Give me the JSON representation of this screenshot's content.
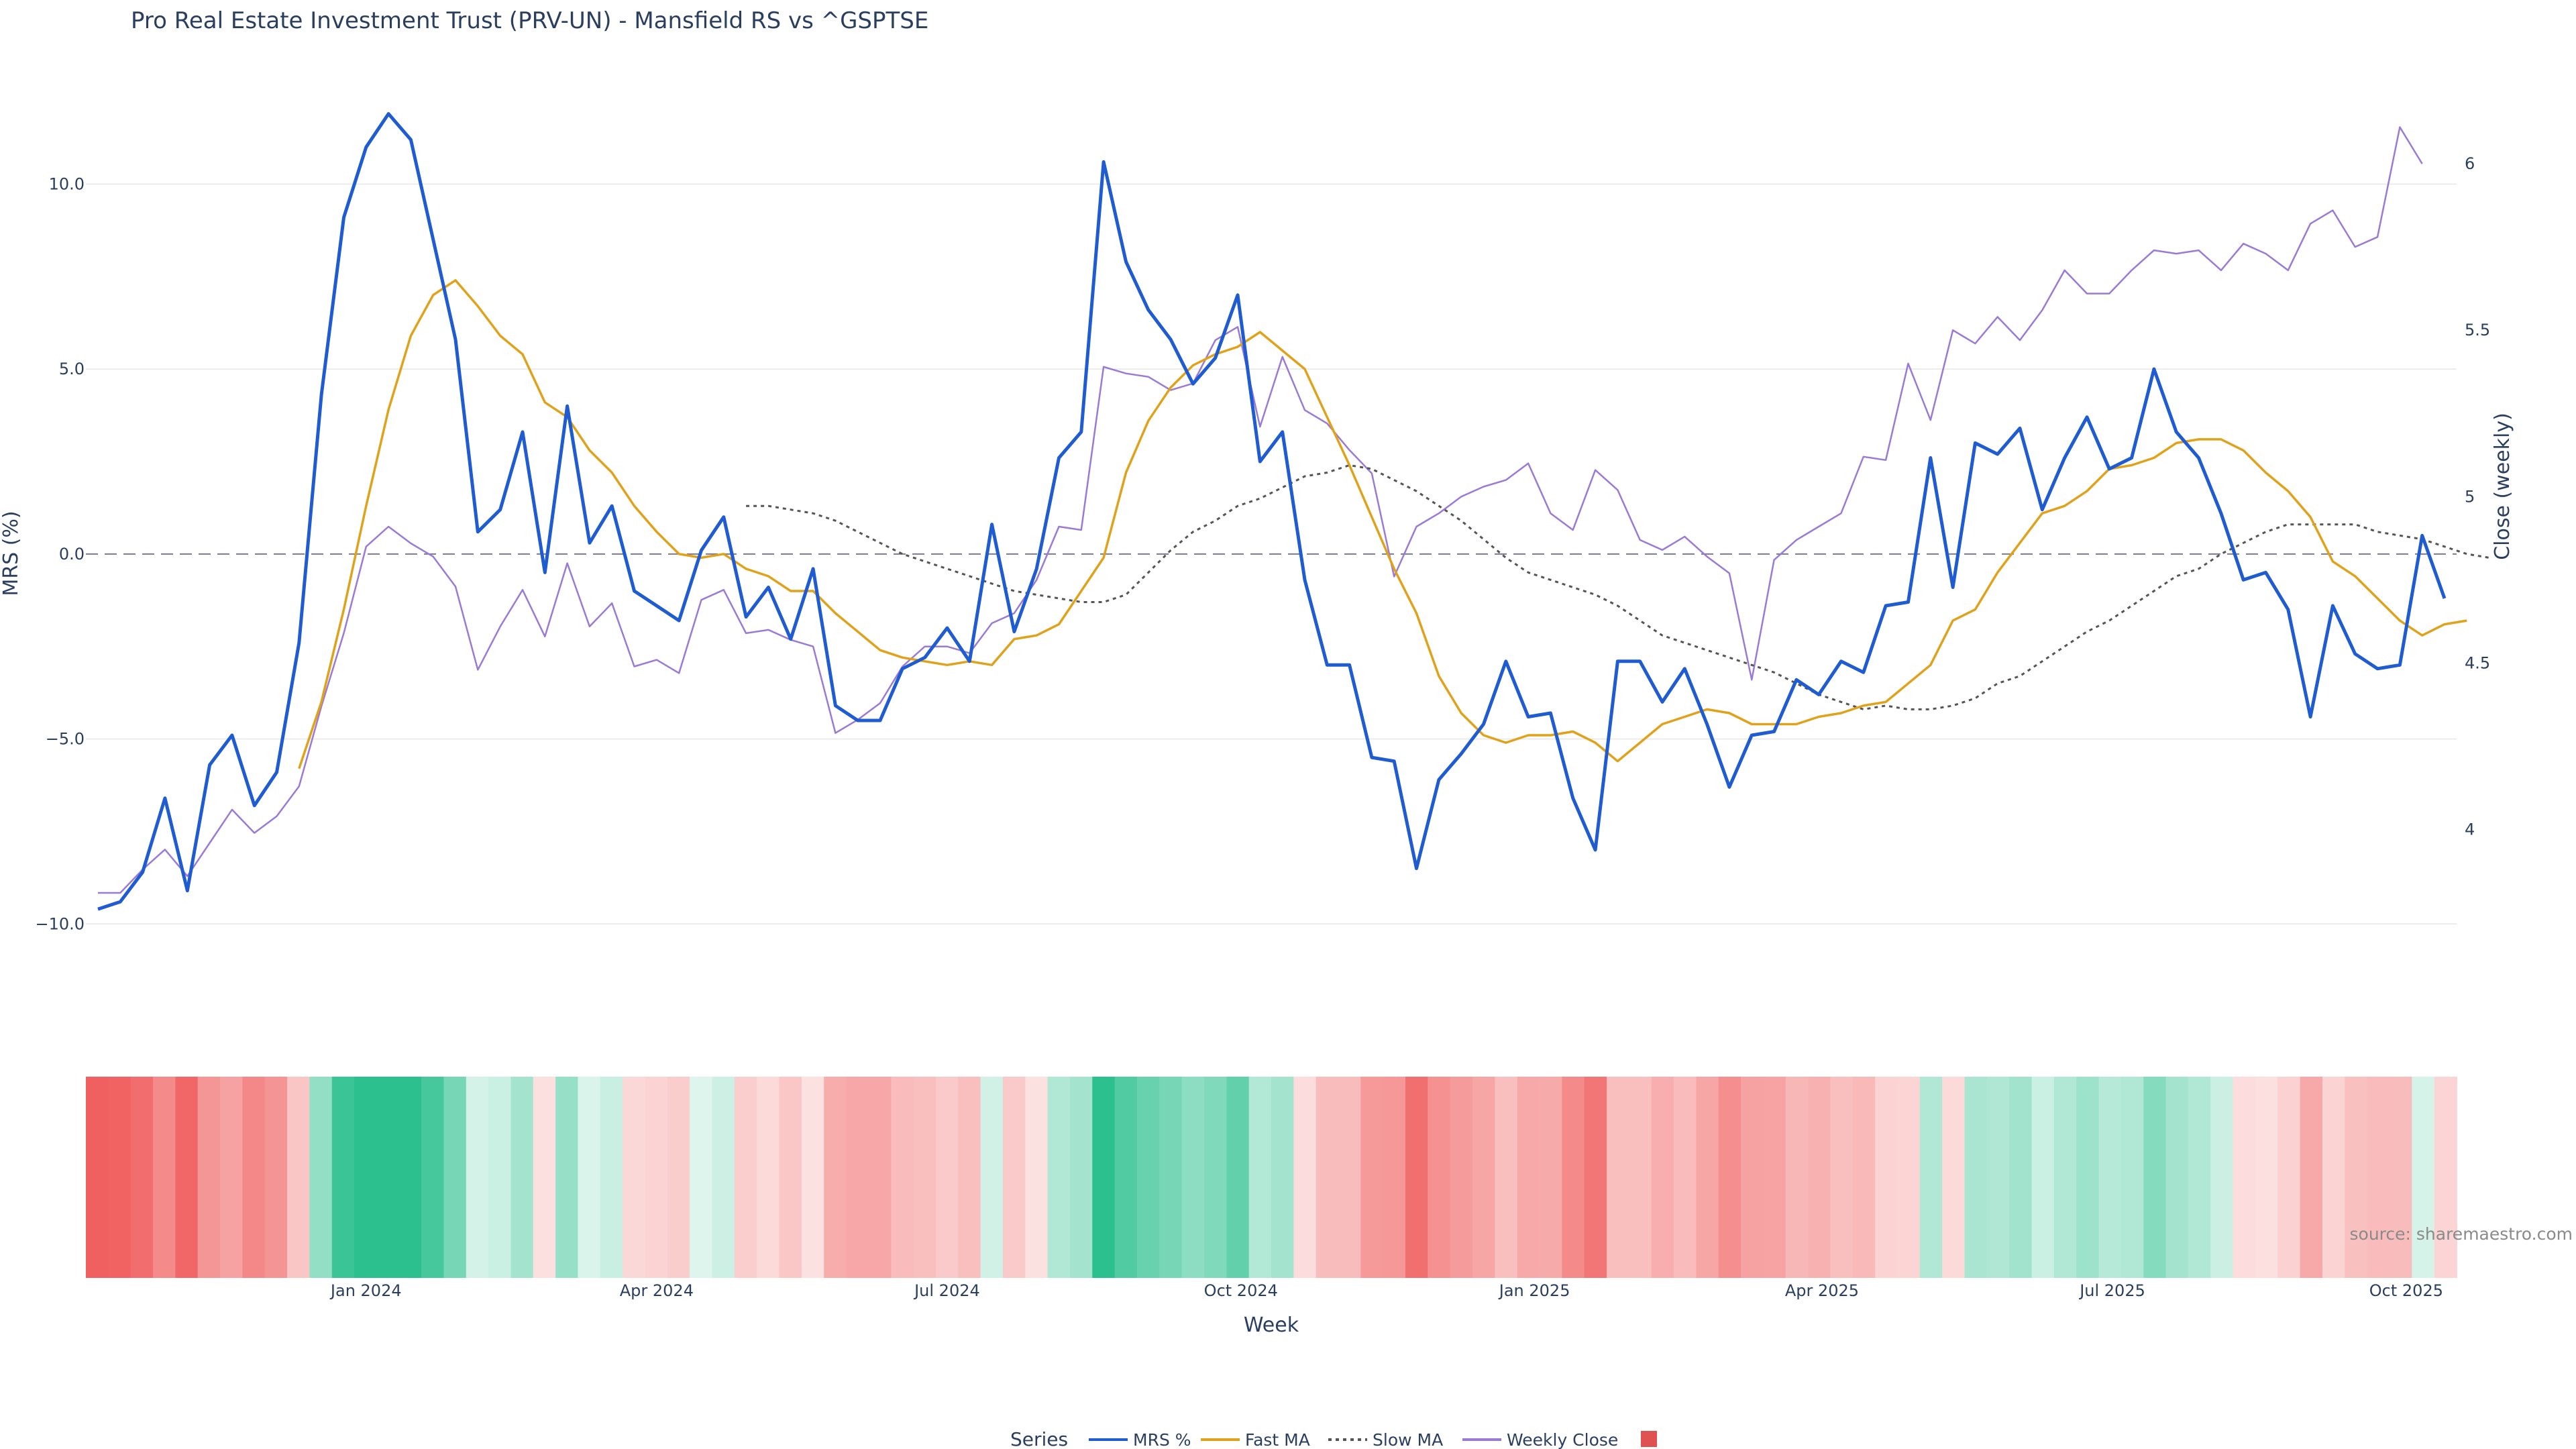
{
  "chart_data": {
    "type": "line",
    "title": "Pro Real Estate Investment Trust (PRV-UN) - Mansfield RS vs ^GSPTSE",
    "xlabel": "Week",
    "ylabel_left": "MRS (%)",
    "ylabel_right": "Close (weekly)",
    "x_start": "2023-10-09",
    "x_step_days": 7,
    "x_tick_labels": [
      "Jan 2024",
      "Apr 2024",
      "Jul 2024",
      "Oct 2024",
      "Jan 2025",
      "Apr 2025",
      "Jul 2025",
      "Oct 2025"
    ],
    "x_tick_dates": [
      "2024-01-01",
      "2024-04-01",
      "2024-07-01",
      "2024-10-01",
      "2025-01-01",
      "2025-04-01",
      "2025-07-01",
      "2025-10-01"
    ],
    "y_left": {
      "range": [
        -11.5,
        12.8
      ],
      "ticks": [
        -10,
        -5,
        0,
        5,
        10
      ],
      "tick_labels": [
        "−10.0",
        "−5.0",
        "0.0",
        "5.0",
        "10.0"
      ]
    },
    "y_right": {
      "range": [
        3.55,
        6.25
      ],
      "ticks": [
        4,
        4.5,
        5,
        5.5,
        6
      ],
      "tick_labels": [
        "4",
        "4.5",
        "5",
        "5.5",
        "6"
      ]
    },
    "zero_line": 0,
    "grid": true,
    "legend_placement": "bottom-center",
    "legend_title": "Series",
    "source_text": "source: sharemaestro.com",
    "series": [
      {
        "name": "MRS %",
        "axis": "left",
        "color": "#1f5bd1",
        "style": "solid",
        "start_index": 0,
        "values": [
          -9.6,
          -9.4,
          -8.6,
          -6.6,
          -9.1,
          -5.7,
          -4.9,
          -6.8,
          -5.9,
          -2.4,
          4.3,
          9.1,
          11.0,
          11.9,
          11.2,
          8.5,
          5.8,
          0.6,
          1.2,
          3.3,
          -0.5,
          4.0,
          0.3,
          1.3,
          -1.0,
          -1.4,
          -1.8,
          0.1,
          1.0,
          -1.7,
          -0.9,
          -2.3,
          -0.4,
          -4.1,
          -4.5,
          -4.5,
          -3.1,
          -2.8,
          -2.0,
          -2.9,
          0.8,
          -2.1,
          -0.4,
          2.6,
          3.3,
          10.6,
          7.9,
          6.6,
          5.8,
          4.6,
          5.3,
          7.0,
          2.5,
          3.3,
          -0.7,
          -3.0,
          -3.0,
          -5.5,
          -5.6,
          -8.5,
          -6.1,
          -5.4,
          -4.6,
          -2.9,
          -4.4,
          -4.3,
          -6.6,
          -8.0,
          -2.9,
          -2.9,
          -4.0,
          -3.1,
          -4.6,
          -6.3,
          -4.9,
          -4.8,
          -3.4,
          -3.8,
          -2.9,
          -3.2,
          -1.4,
          -1.3,
          2.6,
          -0.9,
          3.0,
          2.7,
          3.4,
          1.2,
          2.6,
          3.7,
          2.3,
          2.6,
          5.0,
          3.3,
          2.6,
          1.1,
          -0.7,
          -0.5,
          -1.5,
          -4.4,
          -1.4,
          -2.7,
          -3.1,
          -3.0,
          0.5,
          -1.2
        ]
      },
      {
        "name": "Fast MA",
        "axis": "left",
        "color": "#e0a21a",
        "style": "solid",
        "start_index": 9,
        "values": [
          -5.8,
          -4.0,
          -1.5,
          1.3,
          3.9,
          5.9,
          7.0,
          7.4,
          6.7,
          5.9,
          5.4,
          4.1,
          3.7,
          2.8,
          2.2,
          1.3,
          0.6,
          0.0,
          -0.1,
          0.0,
          -0.4,
          -0.6,
          -1.0,
          -1.0,
          -1.6,
          -2.1,
          -2.6,
          -2.8,
          -2.9,
          -3.0,
          -2.9,
          -3.0,
          -2.3,
          -2.2,
          -1.9,
          -1.0,
          -0.1,
          2.2,
          3.6,
          4.5,
          5.1,
          5.4,
          5.6,
          6.0,
          5.5,
          5.0,
          3.7,
          2.4,
          1.0,
          -0.4,
          -1.6,
          -3.3,
          -4.3,
          -4.9,
          -5.1,
          -4.9,
          -4.9,
          -4.8,
          -5.1,
          -5.6,
          -5.1,
          -4.6,
          -4.4,
          -4.2,
          -4.3,
          -4.6,
          -4.6,
          -4.6,
          -4.4,
          -4.3,
          -4.1,
          -4.0,
          -3.5,
          -3.0,
          -1.8,
          -1.5,
          -0.5,
          0.3,
          1.1,
          1.3,
          1.7,
          2.3,
          2.4,
          2.6,
          3.0,
          3.1,
          3.1,
          2.8,
          2.2,
          1.7,
          1.0,
          -0.2,
          -0.6,
          -1.2,
          -1.8,
          -2.2,
          -1.9,
          -1.8
        ]
      },
      {
        "name": "Slow MA",
        "axis": "left",
        "color": "#555555",
        "style": "dotted",
        "start_index": 29,
        "values": [
          1.3,
          1.3,
          1.2,
          1.1,
          0.9,
          0.6,
          0.3,
          0.0,
          -0.2,
          -0.4,
          -0.6,
          -0.8,
          -1.0,
          -1.1,
          -1.2,
          -1.3,
          -1.3,
          -1.1,
          -0.5,
          0.1,
          0.6,
          0.9,
          1.3,
          1.5,
          1.8,
          2.1,
          2.2,
          2.4,
          2.3,
          2.0,
          1.7,
          1.3,
          0.9,
          0.4,
          -0.1,
          -0.5,
          -0.7,
          -0.9,
          -1.1,
          -1.4,
          -1.8,
          -2.2,
          -2.4,
          -2.6,
          -2.8,
          -3.0,
          -3.2,
          -3.5,
          -3.8,
          -4.0,
          -4.2,
          -4.1,
          -4.2,
          -4.2,
          -4.1,
          -3.9,
          -3.5,
          -3.3,
          -2.9,
          -2.5,
          -2.1,
          -1.8,
          -1.4,
          -1.0,
          -0.6,
          -0.4,
          0.0,
          0.3,
          0.6,
          0.8,
          0.8,
          0.8,
          0.8,
          0.6,
          0.5,
          0.4,
          0.2,
          0.0,
          -0.1
        ]
      },
      {
        "name": "Weekly Close",
        "axis": "right",
        "color": "#9a7ad6",
        "style": "solid",
        "start_index": 0,
        "values": [
          3.81,
          3.81,
          3.88,
          3.94,
          3.86,
          3.96,
          4.06,
          3.99,
          4.04,
          4.13,
          4.37,
          4.59,
          4.85,
          4.91,
          4.86,
          4.82,
          4.73,
          4.48,
          4.61,
          4.72,
          4.58,
          4.8,
          4.61,
          4.68,
          4.49,
          4.51,
          4.47,
          4.69,
          4.72,
          4.59,
          4.6,
          4.57,
          4.55,
          4.29,
          4.33,
          4.38,
          4.49,
          4.55,
          4.55,
          4.53,
          4.62,
          4.65,
          4.75,
          4.91,
          4.9,
          5.39,
          5.37,
          5.36,
          5.32,
          5.34,
          5.47,
          5.51,
          5.21,
          5.42,
          5.26,
          5.22,
          5.14,
          5.07,
          4.76,
          4.91,
          4.95,
          5.0,
          5.03,
          5.05,
          5.1,
          4.95,
          4.9,
          5.08,
          5.02,
          4.87,
          4.84,
          4.88,
          4.82,
          4.77,
          4.45,
          4.81,
          4.87,
          4.91,
          4.95,
          5.12,
          5.11,
          5.4,
          5.23,
          5.5,
          5.46,
          5.54,
          5.47,
          5.56,
          5.68,
          5.61,
          5.61,
          5.68,
          5.74,
          5.73,
          5.74,
          5.68,
          5.76,
          5.73,
          5.68,
          5.82,
          5.86,
          5.75,
          5.78,
          6.11,
          6.0
        ]
      }
    ],
    "heatmap_strip": {
      "description": "colour band under the main plot shaded by MRS sign and magnitude",
      "positive_color": "#2bc08e",
      "negative_color": "#f05a5a"
    },
    "legend_entries": [
      "MRS %",
      "Fast MA",
      "Slow MA",
      "Weekly Close",
      ""
    ],
    "legend_extra_swatch_color": "#e05252"
  }
}
